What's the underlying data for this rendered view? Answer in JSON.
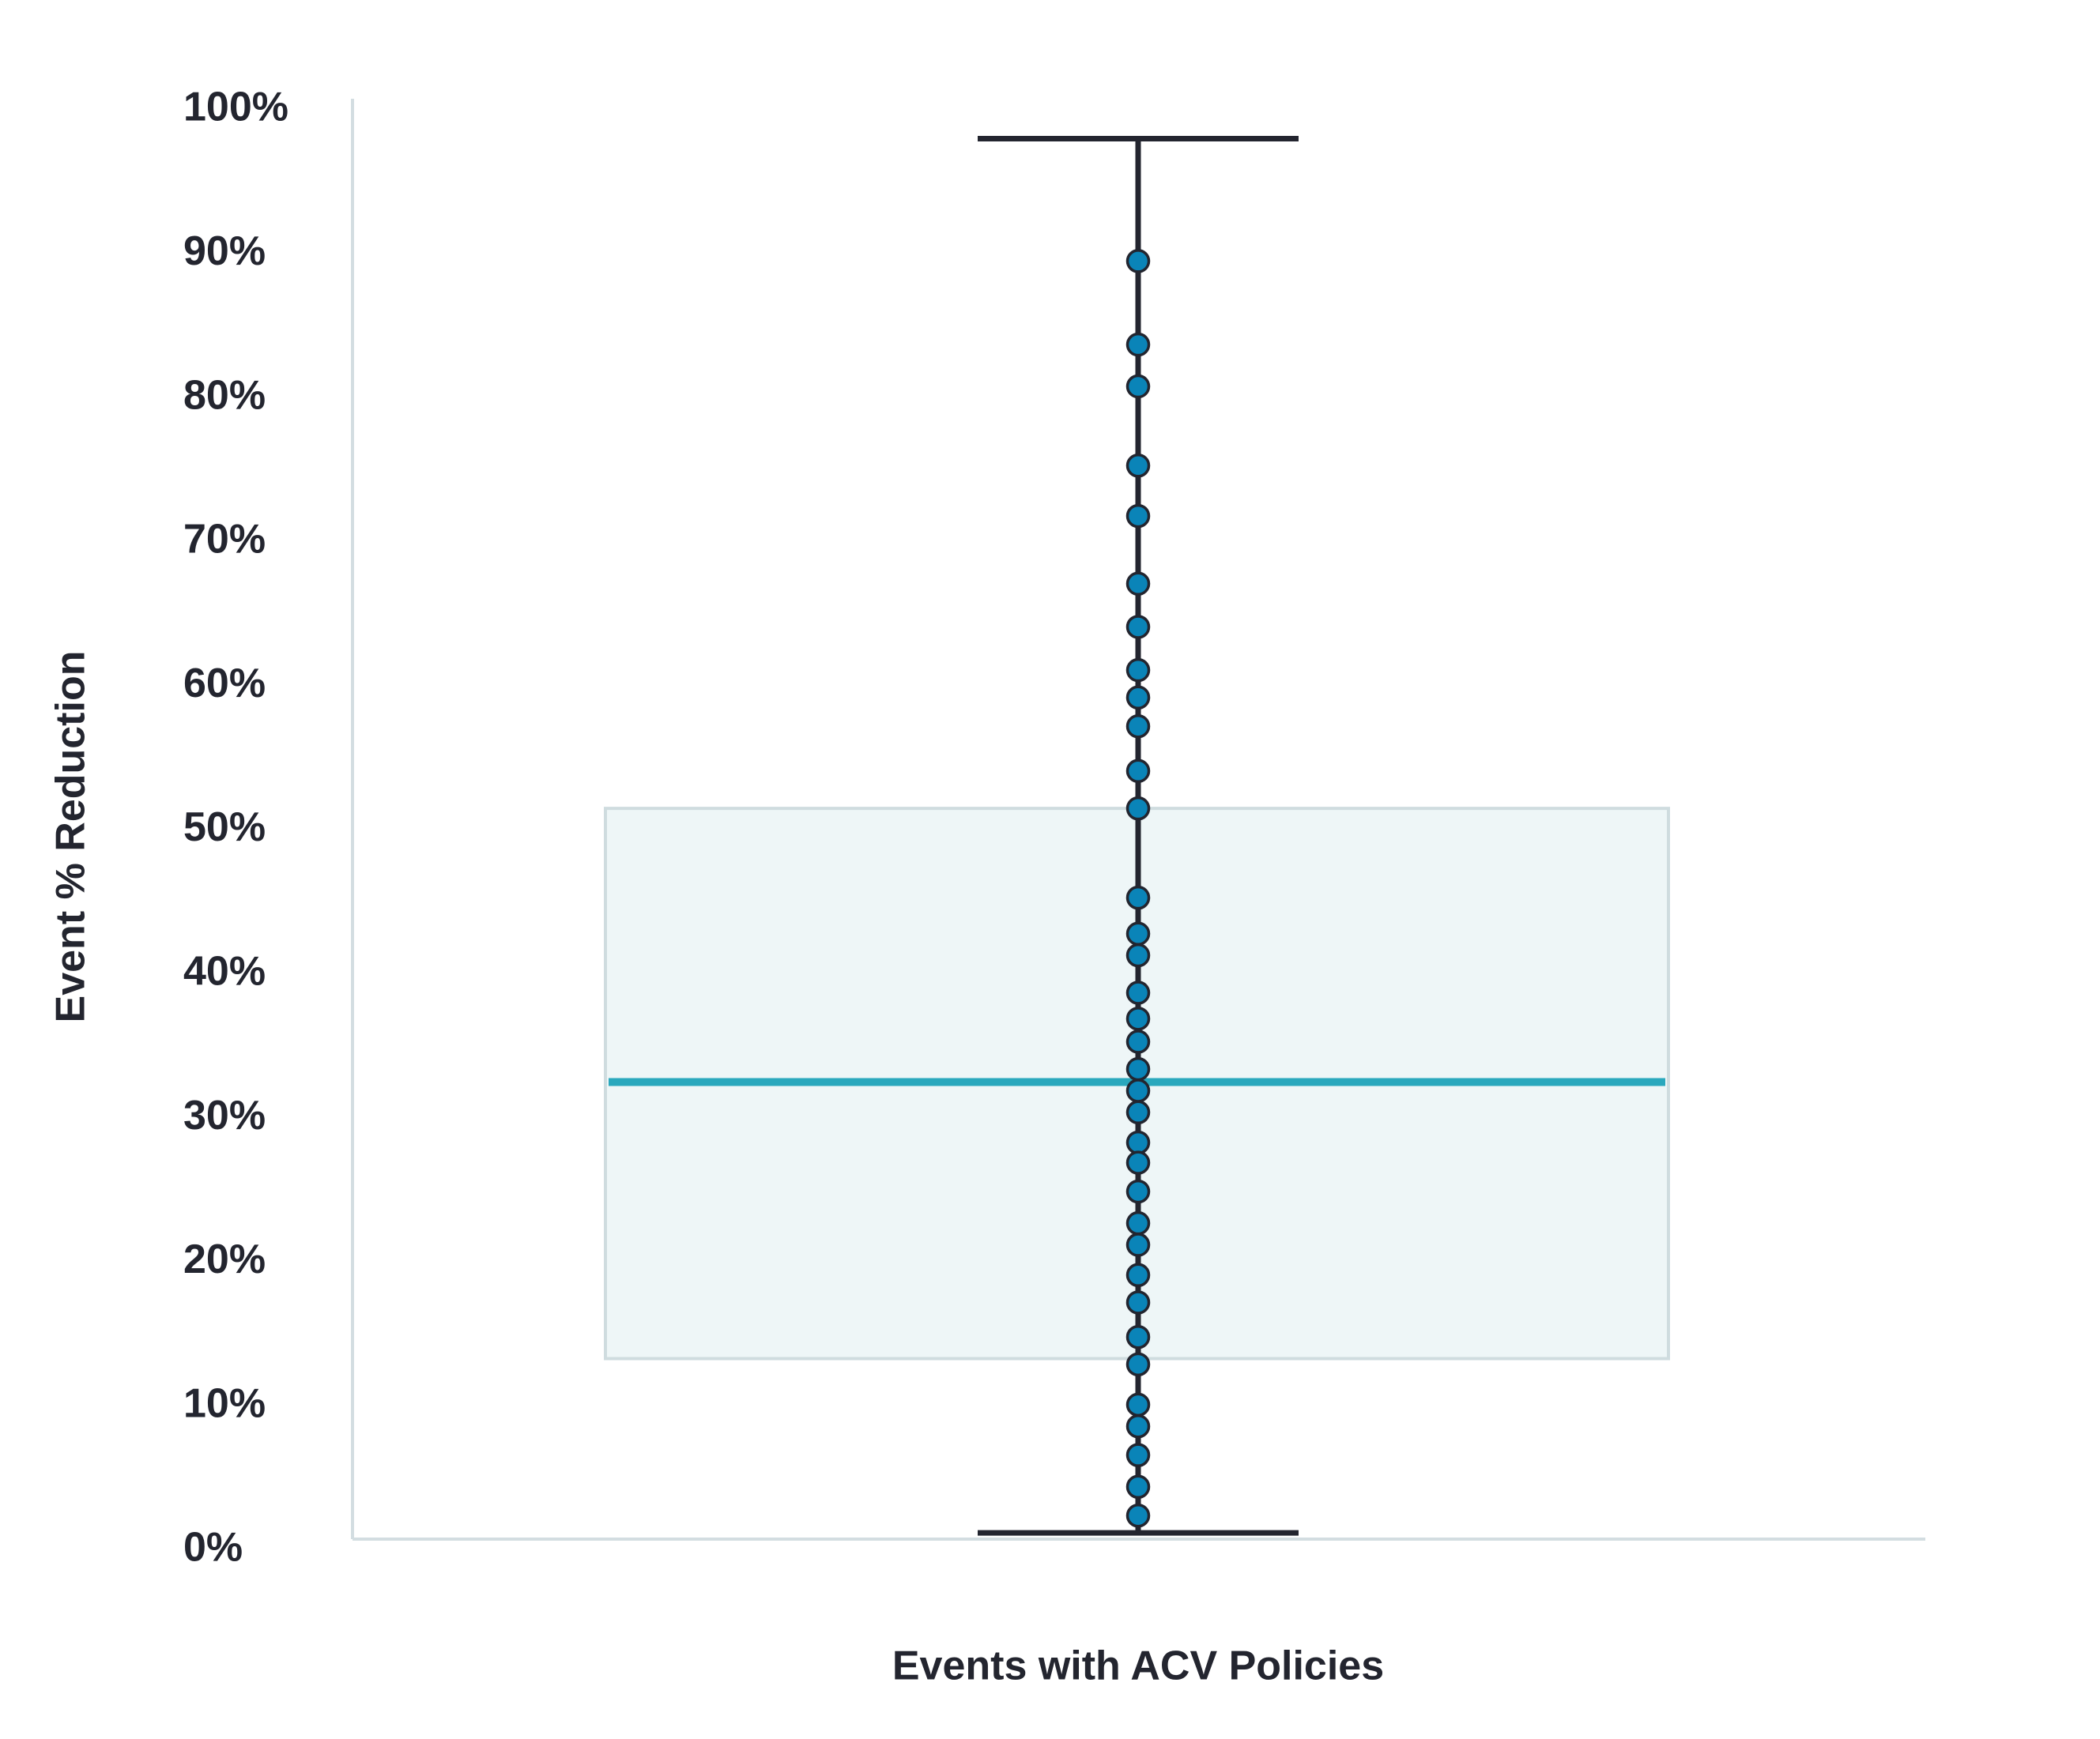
{
  "chart_data": {
    "type": "box",
    "x_label": "Events with ACV Policies",
    "y_label": "Event % Reduction",
    "whisker_low": 1.2,
    "q1": 13.3,
    "median": 32.5,
    "q3": 51.5,
    "whisker_high": 98.0,
    "points": [
      89.5,
      83.7,
      80.8,
      75.3,
      71.8,
      67.1,
      64.1,
      61.1,
      59.2,
      57.2,
      54.1,
      51.5,
      45.3,
      42.8,
      41.3,
      38.7,
      36.9,
      35.3,
      33.4,
      31.9,
      30.4,
      28.3,
      26.9,
      24.9,
      22.7,
      21.2,
      19.1,
      17.2,
      14.8,
      12.9,
      10.1,
      8.6,
      6.6,
      4.4,
      2.4
    ],
    "box_color": "#eef6f7",
    "box_edge_color": "#cfdcdf",
    "median_color": "#2aa8bd",
    "whisker_color": "#23252f",
    "point_color": "#0a84b8",
    "ylim": [
      0,
      100
    ],
    "yticks": [
      {
        "value": 0,
        "label": "0%"
      },
      {
        "value": 10,
        "label": "10%"
      },
      {
        "value": 20,
        "label": "20%"
      },
      {
        "value": 30,
        "label": "30%"
      },
      {
        "value": 40,
        "label": "40%"
      },
      {
        "value": 50,
        "label": "50%"
      },
      {
        "value": 60,
        "label": "60%"
      },
      {
        "value": 70,
        "label": "70%"
      },
      {
        "value": 80,
        "label": "80%"
      },
      {
        "value": 90,
        "label": "90%"
      },
      {
        "value": 100,
        "label": "100%"
      }
    ],
    "grid": false
  }
}
